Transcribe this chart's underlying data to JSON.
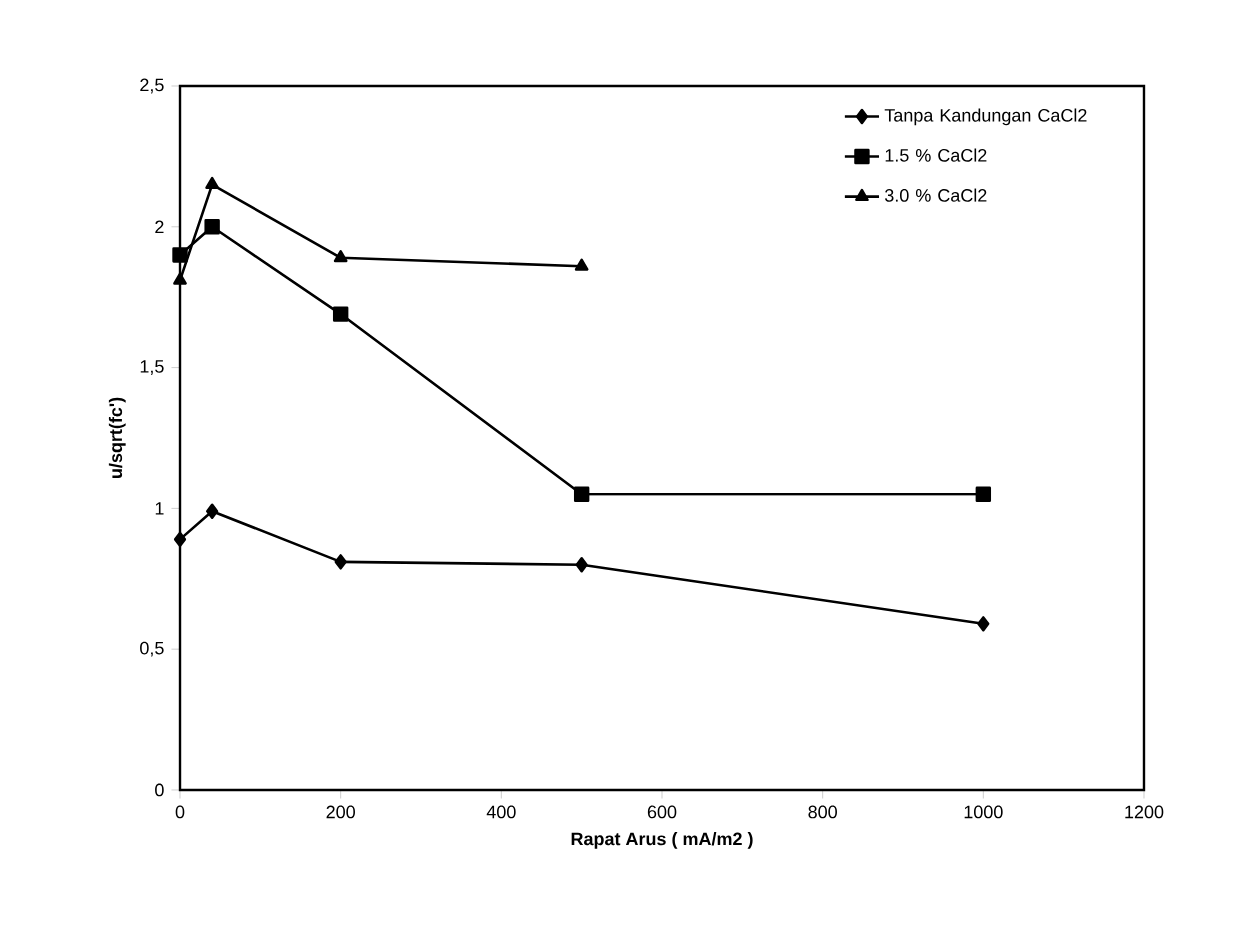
{
  "chart_data": {
    "type": "line",
    "xlabel": "Rapat Arus ( mA/m2 )",
    "ylabel": "u/sqrt(fc')",
    "xlim": [
      0,
      1200
    ],
    "xticks": [
      0,
      200,
      400,
      600,
      800,
      1000,
      1200
    ],
    "ylim": [
      0,
      2.5
    ],
    "yticks": [
      0,
      {
        "value": 0.5,
        "label": "0,5"
      },
      1,
      {
        "value": 1.5,
        "label": "1,5"
      },
      2,
      {
        "value": 2.5,
        "label": "2,5"
      }
    ],
    "legend": "top right",
    "grid": false,
    "series": [
      {
        "name": "Tanpa Kandungan CaCl2",
        "color": "#000000",
        "marker": "diamond",
        "x": [
          0,
          40,
          200,
          500,
          1000
        ],
        "values": [
          0.89,
          0.99,
          0.81,
          0.8,
          0.59
        ]
      },
      {
        "name": "1.5 % CaCl2",
        "color": "#000000",
        "marker": "square",
        "x": [
          0,
          40,
          200,
          500,
          1000
        ],
        "values": [
          1.9,
          2.0,
          1.69,
          1.05,
          1.05
        ]
      },
      {
        "name": "3.0 % CaCl2",
        "color": "#000000",
        "marker": "triangle",
        "x": [
          0,
          40,
          200,
          500
        ],
        "values": [
          1.81,
          2.15,
          1.89,
          1.86
        ]
      }
    ]
  }
}
